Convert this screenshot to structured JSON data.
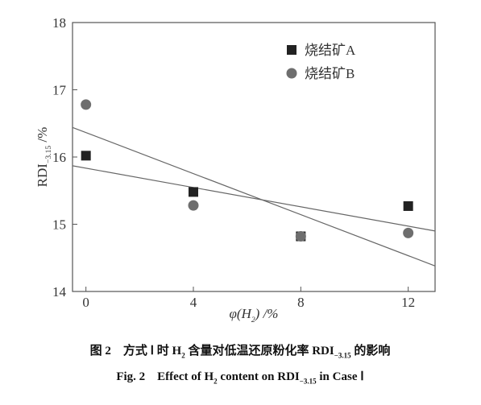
{
  "chart_data": {
    "type": "scatter",
    "y_label": [
      "RDI",
      "−3.15",
      " /%"
    ],
    "x_label": [
      "φ(H",
      "2",
      ") /%"
    ],
    "xlim": [
      -0.5,
      13
    ],
    "ylim": [
      14,
      18
    ],
    "xticks": [
      0,
      4,
      8,
      12
    ],
    "yticks": [
      14,
      15,
      16,
      17,
      18
    ],
    "legend": "top-right",
    "series": [
      {
        "name": "烧结矿A",
        "marker": "square",
        "color": "#222222",
        "x": [
          0,
          4,
          8,
          12
        ],
        "values": [
          16.02,
          15.48,
          14.82,
          15.27
        ]
      },
      {
        "name": "烧结矿B",
        "marker": "circle",
        "color": "#6e6e6e",
        "x": [
          0,
          4,
          8,
          12
        ],
        "values": [
          16.78,
          15.28,
          14.82,
          14.87
        ]
      }
    ],
    "trend_lines": [
      {
        "x": [
          -0.5,
          13
        ],
        "values": [
          15.87,
          14.9
        ]
      },
      {
        "x": [
          -0.5,
          13
        ],
        "values": [
          16.44,
          14.38
        ]
      }
    ]
  },
  "caption_cn": [
    "图 2　方式 Ⅰ 时 H",
    "2",
    " 含量对低温还原粉化率 RDI",
    "−3.15",
    " 的影响"
  ],
  "caption_en": [
    "Fig. 2　Effect of H",
    "2",
    " content on RDI",
    "−3.15",
    " in Case Ⅰ"
  ]
}
